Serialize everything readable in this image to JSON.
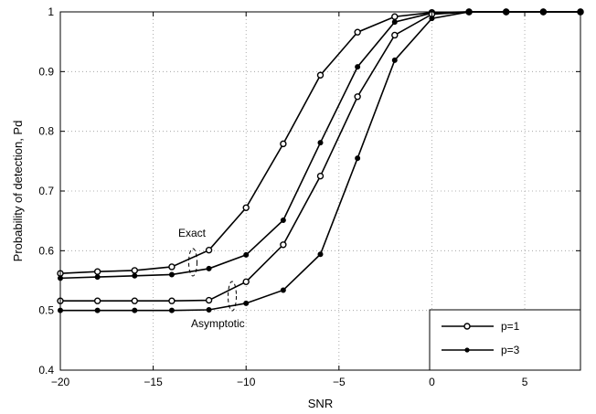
{
  "chart_data": {
    "type": "line",
    "xlabel": "SNR",
    "ylabel": "Probability of detection, Pd",
    "xlim": [
      -20,
      8
    ],
    "ylim": [
      0.4,
      1.0
    ],
    "xticks": [
      -20,
      -15,
      -10,
      -5,
      0,
      5
    ],
    "yticks": [
      0.4,
      0.5,
      0.6,
      0.7,
      0.8,
      0.9,
      1
    ],
    "grid": true,
    "legend_position": "bottom-right",
    "legend": [
      {
        "label": "p=1",
        "marker": "open-circle"
      },
      {
        "label": "p=3",
        "marker": "filled-dot"
      }
    ],
    "annotations": [
      {
        "text": "Exact"
      },
      {
        "text": "Asymptotic"
      }
    ],
    "series": [
      {
        "marker": "open-circle",
        "x": [
          -20,
          -18,
          -16,
          -14,
          -12,
          -10,
          -8,
          -6,
          -4,
          -2,
          0,
          2,
          4,
          6,
          8
        ],
        "y": [
          0.562,
          0.565,
          0.567,
          0.573,
          0.601,
          0.672,
          0.779,
          0.894,
          0.966,
          0.992,
          0.999,
          1.0,
          1.0,
          1.0,
          1.0
        ]
      },
      {
        "marker": "filled-dot",
        "x": [
          -20,
          -18,
          -16,
          -14,
          -12,
          -10,
          -8,
          -6,
          -4,
          -2,
          0,
          2,
          4,
          6,
          8
        ],
        "y": [
          0.554,
          0.556,
          0.558,
          0.56,
          0.57,
          0.593,
          0.651,
          0.781,
          0.908,
          0.983,
          0.998,
          1.0,
          1.0,
          1.0,
          1.0
        ]
      },
      {
        "marker": "open-circle",
        "x": [
          -20,
          -18,
          -16,
          -14,
          -12,
          -10,
          -8,
          -6,
          -4,
          -2,
          0,
          2,
          4,
          6,
          8
        ],
        "y": [
          0.516,
          0.516,
          0.516,
          0.516,
          0.517,
          0.548,
          0.61,
          0.725,
          0.858,
          0.961,
          0.996,
          1.0,
          1.0,
          1.0,
          1.0
        ]
      },
      {
        "marker": "filled-dot",
        "x": [
          -20,
          -18,
          -16,
          -14,
          -12,
          -10,
          -8,
          -6,
          -4,
          -2,
          0,
          2,
          4,
          6,
          8
        ],
        "y": [
          0.5,
          0.5,
          0.5,
          0.5,
          0.501,
          0.512,
          0.534,
          0.594,
          0.755,
          0.919,
          0.989,
          1.0,
          1.0,
          1.0,
          1.0
        ]
      }
    ]
  }
}
